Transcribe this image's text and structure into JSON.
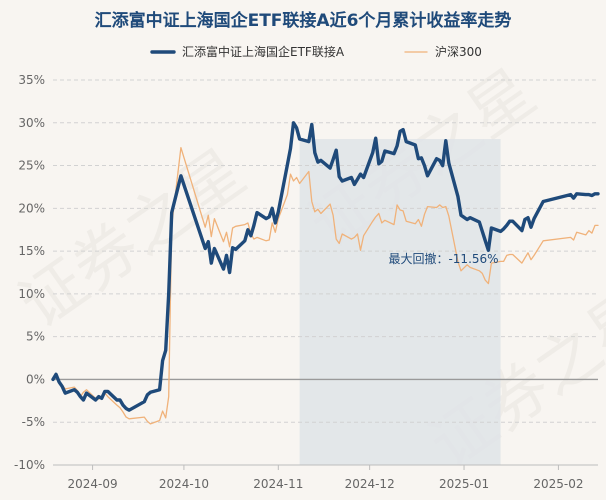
{
  "chart_data": {
    "type": "line",
    "title": "汇添富中证上海国企ETF联接A近6个月累计收益率走势",
    "xlabel": "",
    "ylabel": "",
    "ylim": [
      -10,
      35
    ],
    "yticks": [
      -10,
      -5,
      0,
      5,
      10,
      15,
      20,
      25,
      30,
      35
    ],
    "ytick_labels": [
      "-10%",
      "-5%",
      "0%",
      "5%",
      "10%",
      "15%",
      "20%",
      "25%",
      "30%",
      "35%"
    ],
    "x_range": [
      "2024-08-19",
      "2025-02-14"
    ],
    "xticks": [
      "2024-09-01",
      "2024-10-01",
      "2024-11-01",
      "2024-12-01",
      "2025-01-01",
      "2025-02-01"
    ],
    "xtick_labels": [
      "2024-09",
      "2024-10",
      "2024-11",
      "2024-12",
      "2025-01",
      "2025-02"
    ],
    "grid": "horizontal",
    "legend_position": "top",
    "watermark": "证券之星",
    "series": [
      {
        "name": "汇添富中证上海国企ETF联接A",
        "color": "#1f4a7a",
        "x": [
          "2024-08-19",
          "2024-08-20",
          "2024-08-21",
          "2024-08-22",
          "2024-08-23",
          "2024-08-26",
          "2024-08-27",
          "2024-08-28",
          "2024-08-29",
          "2024-08-30",
          "2024-09-02",
          "2024-09-03",
          "2024-09-04",
          "2024-09-05",
          "2024-09-06",
          "2024-09-09",
          "2024-09-10",
          "2024-09-11",
          "2024-09-12",
          "2024-09-13",
          "2024-09-18",
          "2024-09-19",
          "2024-09-20",
          "2024-09-23",
          "2024-09-24",
          "2024-09-25",
          "2024-09-26",
          "2024-09-27",
          "2024-09-30",
          "2024-10-08",
          "2024-10-09",
          "2024-10-10",
          "2024-10-11",
          "2024-10-14",
          "2024-10-15",
          "2024-10-16",
          "2024-10-17",
          "2024-10-18",
          "2024-10-21",
          "2024-10-22",
          "2024-10-23",
          "2024-10-24",
          "2024-10-25",
          "2024-10-28",
          "2024-10-29",
          "2024-10-30",
          "2024-10-31",
          "2024-11-01",
          "2024-11-04",
          "2024-11-05",
          "2024-11-06",
          "2024-11-07",
          "2024-11-08",
          "2024-11-11",
          "2024-11-12",
          "2024-11-13",
          "2024-11-14",
          "2024-11-15",
          "2024-11-18",
          "2024-11-19",
          "2024-11-20",
          "2024-11-21",
          "2024-11-22",
          "2024-11-25",
          "2024-11-26",
          "2024-11-27",
          "2024-11-28",
          "2024-11-29",
          "2024-12-02",
          "2024-12-03",
          "2024-12-04",
          "2024-12-05",
          "2024-12-06",
          "2024-12-09",
          "2024-12-10",
          "2024-12-11",
          "2024-12-12",
          "2024-12-13",
          "2024-12-16",
          "2024-12-17",
          "2024-12-18",
          "2024-12-19",
          "2024-12-20",
          "2024-12-23",
          "2024-12-24",
          "2024-12-25",
          "2024-12-26",
          "2024-12-27",
          "2024-12-30",
          "2024-12-31",
          "2025-01-02",
          "2025-01-03",
          "2025-01-06",
          "2025-01-07",
          "2025-01-08",
          "2025-01-09",
          "2025-01-10",
          "2025-01-13",
          "2025-01-14",
          "2025-01-15",
          "2025-01-16",
          "2025-01-17",
          "2025-01-20",
          "2025-01-21",
          "2025-01-22",
          "2025-01-23",
          "2025-01-24",
          "2025-01-27",
          "2025-02-05",
          "2025-02-06",
          "2025-02-07",
          "2025-02-10",
          "2025-02-11",
          "2025-02-12",
          "2025-02-13",
          "2025-02-14"
        ],
        "values": [
          0.0,
          0.6,
          -0.3,
          -0.8,
          -1.6,
          -1.2,
          -1.5,
          -2.0,
          -2.4,
          -1.6,
          -2.4,
          -2.0,
          -2.2,
          -1.4,
          -1.4,
          -2.4,
          -2.4,
          -3.0,
          -3.4,
          -3.6,
          -2.6,
          -1.8,
          -1.5,
          -1.2,
          2.2,
          3.4,
          10.0,
          19.5,
          23.8,
          15.3,
          16.1,
          13.6,
          15.3,
          12.9,
          14.5,
          12.5,
          15.4,
          15.2,
          16.2,
          17.5,
          16.8,
          18.0,
          19.5,
          18.8,
          19.0,
          20.0,
          18.3,
          19.6,
          25.1,
          27.0,
          30.0,
          29.4,
          28.1,
          27.8,
          29.8,
          26.5,
          25.4,
          25.6,
          24.7,
          25.7,
          26.8,
          23.7,
          23.2,
          23.6,
          22.8,
          23.4,
          24.0,
          23.6,
          26.5,
          28.2,
          25.2,
          25.5,
          26.7,
          26.4,
          27.3,
          29.0,
          29.2,
          27.8,
          27.4,
          25.8,
          25.9,
          25.0,
          23.8,
          25.8,
          25.6,
          25.0,
          27.9,
          25.3,
          21.4,
          19.2,
          18.7,
          18.9,
          18.4,
          17.3,
          16.2,
          15.1,
          17.7,
          17.3,
          17.6,
          18.0,
          18.5,
          18.5,
          17.4,
          18.7,
          18.9,
          17.8,
          18.8,
          20.8,
          21.6,
          21.2,
          21.7,
          21.6,
          21.6,
          21.5,
          21.7,
          21.7
        ]
      },
      {
        "name": "沪深300",
        "color": "#f0b27a",
        "x": [
          "2024-08-19",
          "2024-08-20",
          "2024-08-21",
          "2024-08-22",
          "2024-08-23",
          "2024-08-26",
          "2024-08-27",
          "2024-08-28",
          "2024-08-29",
          "2024-08-30",
          "2024-09-02",
          "2024-09-03",
          "2024-09-04",
          "2024-09-05",
          "2024-09-06",
          "2024-09-09",
          "2024-09-10",
          "2024-09-11",
          "2024-09-12",
          "2024-09-13",
          "2024-09-18",
          "2024-09-19",
          "2024-09-20",
          "2024-09-23",
          "2024-09-24",
          "2024-09-25",
          "2024-09-26",
          "2024-09-27",
          "2024-09-30",
          "2024-10-08",
          "2024-10-09",
          "2024-10-10",
          "2024-10-11",
          "2024-10-14",
          "2024-10-15",
          "2024-10-16",
          "2024-10-17",
          "2024-10-18",
          "2024-10-21",
          "2024-10-22",
          "2024-10-23",
          "2024-10-24",
          "2024-10-25",
          "2024-10-28",
          "2024-10-29",
          "2024-10-30",
          "2024-10-31",
          "2024-11-01",
          "2024-11-04",
          "2024-11-05",
          "2024-11-06",
          "2024-11-07",
          "2024-11-08",
          "2024-11-11",
          "2024-11-12",
          "2024-11-13",
          "2024-11-14",
          "2024-11-15",
          "2024-11-18",
          "2024-11-19",
          "2024-11-20",
          "2024-11-21",
          "2024-11-22",
          "2024-11-25",
          "2024-11-26",
          "2024-11-27",
          "2024-11-28",
          "2024-11-29",
          "2024-12-02",
          "2024-12-03",
          "2024-12-04",
          "2024-12-05",
          "2024-12-06",
          "2024-12-09",
          "2024-12-10",
          "2024-12-11",
          "2024-12-12",
          "2024-12-13",
          "2024-12-16",
          "2024-12-17",
          "2024-12-18",
          "2024-12-19",
          "2024-12-20",
          "2024-12-23",
          "2024-12-24",
          "2024-12-25",
          "2024-12-26",
          "2024-12-27",
          "2024-12-30",
          "2024-12-31",
          "2025-01-02",
          "2025-01-03",
          "2025-01-06",
          "2025-01-07",
          "2025-01-08",
          "2025-01-09",
          "2025-01-10",
          "2025-01-13",
          "2025-01-14",
          "2025-01-15",
          "2025-01-16",
          "2025-01-17",
          "2025-01-20",
          "2025-01-21",
          "2025-01-22",
          "2025-01-23",
          "2025-01-24",
          "2025-01-27",
          "2025-02-05",
          "2025-02-06",
          "2025-02-07",
          "2025-02-10",
          "2025-02-11",
          "2025-02-12",
          "2025-02-13",
          "2025-02-14"
        ],
        "values": [
          0.0,
          0.4,
          -0.3,
          -0.6,
          -1.1,
          -0.9,
          -1.3,
          -2.0,
          -1.5,
          -1.2,
          -2.2,
          -2.3,
          -2.0,
          -1.6,
          -2.0,
          -3.0,
          -3.3,
          -3.8,
          -4.4,
          -4.6,
          -4.4,
          -4.9,
          -5.2,
          -4.8,
          -3.7,
          -4.5,
          -2.0,
          18.0,
          27.1,
          17.8,
          19.2,
          16.7,
          18.8,
          16.1,
          17.2,
          15.5,
          17.7,
          17.9,
          18.1,
          18.3,
          17.0,
          16.4,
          16.6,
          16.2,
          16.3,
          18.3,
          17.2,
          18.8,
          21.6,
          24.0,
          23.2,
          23.6,
          22.9,
          24.3,
          20.8,
          19.6,
          19.9,
          19.4,
          20.5,
          19.2,
          16.4,
          15.9,
          17.0,
          16.4,
          16.6,
          17.0,
          15.1,
          16.8,
          18.5,
          19.0,
          19.4,
          18.3,
          18.6,
          18.1,
          20.4,
          19.8,
          19.7,
          18.5,
          18.2,
          18.7,
          17.9,
          19.3,
          20.2,
          20.1,
          20.4,
          20.1,
          20.2,
          19.1,
          13.8,
          12.7,
          13.4,
          13.1,
          12.7,
          12.4,
          11.6,
          11.2,
          13.6,
          13.8,
          13.8,
          14.5,
          14.6,
          14.6,
          13.6,
          14.2,
          14.8,
          14.0,
          14.5,
          16.2,
          16.6,
          16.3,
          17.2,
          16.9,
          17.4,
          17.1,
          18.0,
          18.0
        ]
      }
    ],
    "annotations": [
      {
        "text": "最大回撤：-11.56%",
        "shaded_range": [
          "2024-11-08",
          "2025-01-13"
        ]
      }
    ]
  }
}
